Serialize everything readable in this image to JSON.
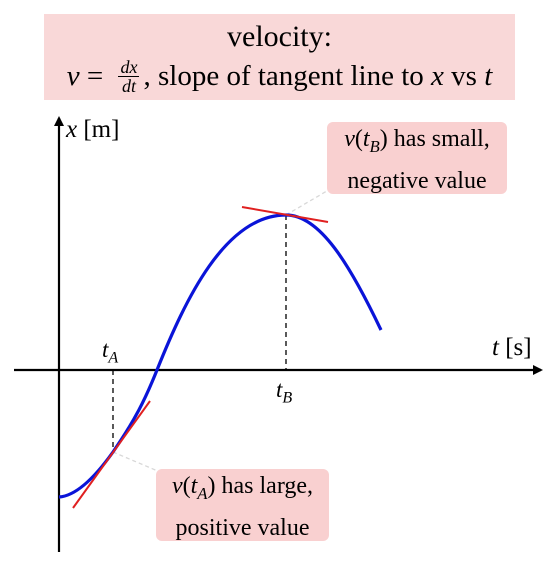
{
  "title": {
    "line1": "velocity:",
    "v_symbol": "v",
    "equals": "=",
    "frac_num": "dx",
    "frac_den": "dt",
    "rest_text": ", slope of tangent line to ",
    "x_symbol": "x",
    "vs_text": " vs ",
    "t_symbol": "t"
  },
  "axes": {
    "x_label_var": "t",
    "x_label_unit": " [s]",
    "y_label_var": "x",
    "y_label_unit": " [m]"
  },
  "ticks": {
    "tA_main": "t",
    "tA_sub": "A",
    "tB_main": "t",
    "tB_sub": "B"
  },
  "callout_b": {
    "v": "v",
    "open": "(",
    "t": "t",
    "sub": "B",
    "close_text": ") has small,",
    "line2": "negative value"
  },
  "callout_a": {
    "v": "v",
    "open": "(",
    "t": "t",
    "sub": "A",
    "close_text": ") has large,",
    "line2": "positive value"
  },
  "colors": {
    "curve": "#0a14d8",
    "tangent": "#e02020",
    "box_fill": "#f9d0d0",
    "title_fill": "#f9d8d8"
  }
}
